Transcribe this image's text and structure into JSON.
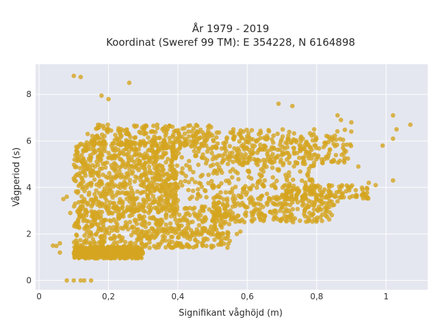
{
  "chart_data": {
    "type": "scatter",
    "title_lines": [
      "År 1979 - 2019",
      "Koordinat (Sweref 99 TM): E 354228, N 6164898"
    ],
    "xlabel": "Signifikant våghöjd (m)",
    "ylabel": "Vågperiod (s)",
    "xlim": [
      -0.01,
      1.12
    ],
    "ylim": [
      -0.4,
      9.3
    ],
    "xticks": [
      0,
      0.2,
      0.4,
      0.6,
      0.8,
      1
    ],
    "xtick_labels": [
      "0",
      "0,2",
      "0,4",
      "0,6",
      "0,8",
      "1"
    ],
    "yticks": [
      0,
      2,
      4,
      6,
      8
    ],
    "ytick_labels": [
      "0",
      "2",
      "4",
      "6",
      "8"
    ],
    "grid": true,
    "background": "#e5e7f0",
    "point_color": "#d4a521",
    "series": [
      {
        "points": [
          [
            0.1,
            8.8
          ],
          [
            0.12,
            8.75
          ],
          [
            0.18,
            7.95
          ],
          [
            0.26,
            8.5
          ],
          [
            0.2,
            7.8
          ],
          [
            0.14,
            6.3
          ],
          [
            0.17,
            6.7
          ],
          [
            0.08,
            0.0
          ],
          [
            0.1,
            0.0
          ],
          [
            0.12,
            0.0
          ],
          [
            0.13,
            0.0
          ],
          [
            0.15,
            0.0
          ],
          [
            0.04,
            1.5
          ],
          [
            0.05,
            1.48
          ],
          [
            0.06,
            1.6
          ],
          [
            0.06,
            1.2
          ],
          [
            0.07,
            3.5
          ],
          [
            0.08,
            3.6
          ],
          [
            0.09,
            2.9
          ],
          [
            1.02,
            7.1
          ],
          [
            1.07,
            6.7
          ],
          [
            1.03,
            6.5
          ],
          [
            1.02,
            6.1
          ],
          [
            0.99,
            5.8
          ],
          [
            1.02,
            4.3
          ],
          [
            0.97,
            4.1
          ],
          [
            0.95,
            4.2
          ],
          [
            0.92,
            4.9
          ],
          [
            0.88,
            5.6
          ],
          [
            0.9,
            6.8
          ],
          [
            0.86,
            7.1
          ],
          [
            0.87,
            6.9
          ],
          [
            0.69,
            7.6
          ],
          [
            0.73,
            7.5
          ],
          [
            0.6,
            6.2
          ],
          [
            0.56,
            6.5
          ],
          [
            0.57,
            2.0
          ],
          [
            0.58,
            2.1
          ],
          [
            0.52,
            1.85
          ],
          [
            0.45,
            1.75
          ],
          [
            0.48,
            1.8
          ],
          [
            0.62,
            3.0
          ],
          [
            0.72,
            3.0
          ],
          [
            0.85,
            3.25
          ],
          [
            0.86,
            3.4
          ]
        ],
        "clouds": [
          {
            "x": [
              0.1,
              0.3
            ],
            "y": [
              0.95,
              1.45
            ],
            "weight": 1.6
          },
          {
            "x": [
              0.1,
              0.55
            ],
            "y": [
              1.4,
              3.2
            ],
            "weight": 2.2
          },
          {
            "x": [
              0.1,
              0.4
            ],
            "y": [
              3.0,
              6.0
            ],
            "weight": 2.4
          },
          {
            "x": [
              0.3,
              0.8
            ],
            "y": [
              3.5,
              6.2
            ],
            "weight": 1.6
          },
          {
            "x": [
              0.5,
              0.9
            ],
            "y": [
              5.0,
              6.5
            ],
            "weight": 0.8
          },
          {
            "x": [
              0.15,
              0.5
            ],
            "y": [
              5.8,
              6.7
            ],
            "weight": 0.7
          },
          {
            "x": [
              0.5,
              0.85
            ],
            "y": [
              2.5,
              3.6
            ],
            "weight": 0.9
          },
          {
            "x": [
              0.7,
              0.95
            ],
            "y": [
              3.5,
              4.1
            ],
            "weight": 0.5
          }
        ]
      }
    ]
  }
}
